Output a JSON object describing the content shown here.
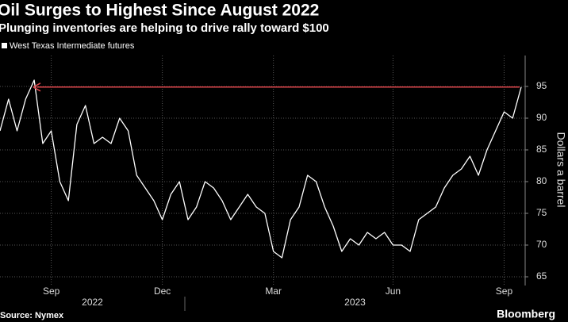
{
  "chart_data": {
    "type": "line",
    "title": "Oil Surges to Highest Since August 2022",
    "subtitle": "Plunging inventories are helping to drive rally toward $100",
    "y_label": "Dollars a barrel",
    "source": "Source: Nymex",
    "branding": "Bloomberg",
    "categories": [
      null,
      null,
      null,
      null,
      null,
      null,
      "Sep",
      null,
      null,
      null,
      null,
      null,
      null,
      null,
      null,
      null,
      null,
      null,
      null,
      "Dec",
      null,
      null,
      null,
      null,
      null,
      null,
      null,
      null,
      null,
      null,
      null,
      null,
      "Mar",
      null,
      null,
      null,
      null,
      null,
      null,
      null,
      null,
      null,
      null,
      null,
      null,
      null,
      "Jun",
      null,
      null,
      null,
      null,
      null,
      null,
      null,
      null,
      null,
      null,
      null,
      null,
      "Sep",
      null,
      null
    ],
    "x_groups": [
      "2022",
      "2023"
    ],
    "series": [
      {
        "name": "West Texas Intermediate futures",
        "color": "#ffffff",
        "values": [
          88,
          93,
          88,
          93,
          96,
          86,
          88,
          80,
          77,
          89,
          92,
          86,
          87,
          86,
          90,
          88,
          81,
          79,
          77,
          74,
          78,
          80,
          74,
          76,
          80,
          79,
          77,
          74,
          76,
          78,
          76,
          75,
          69,
          68,
          74,
          76,
          81,
          80,
          76,
          73,
          69,
          71,
          70,
          72,
          71,
          72,
          70,
          70,
          69,
          74,
          75,
          76,
          79,
          81,
          82,
          84,
          81,
          85,
          88,
          91,
          90,
          94.9
        ]
      }
    ],
    "reference_line": {
      "value": 94.9,
      "color": "#e0474c"
    },
    "ylim": [
      63.625,
      99.875
    ],
    "yticks": [
      65,
      70,
      75,
      80,
      85,
      90,
      95
    ],
    "grid": true
  }
}
